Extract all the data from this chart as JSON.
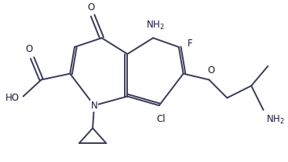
{
  "background_color": "#ffffff",
  "line_color": "#3a3a5a",
  "text_color": "#1a1a3a",
  "bond_width": 1.4,
  "font_size": 8.5,
  "figsize": [
    3.67,
    2.06
  ],
  "dpi": 100,
  "xlim": [
    0,
    9.2
  ],
  "ylim": [
    0,
    5.2
  ]
}
